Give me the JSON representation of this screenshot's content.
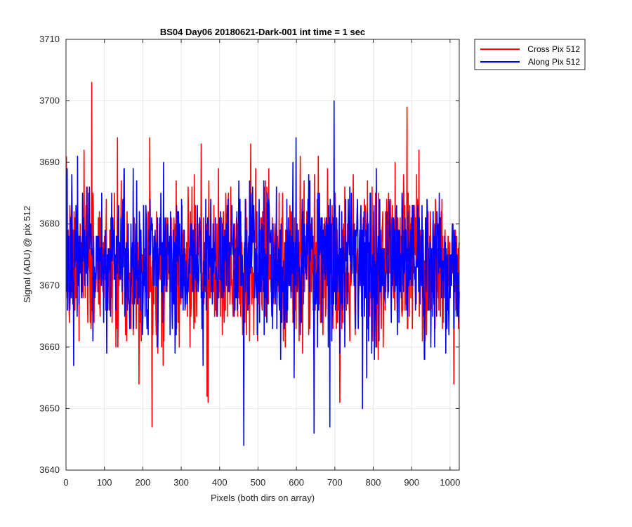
{
  "chart_data": {
    "type": "line",
    "title": "BS04 Day06 20180621-Dark-001 int time = 1 sec",
    "xlabel": "Pixels (both dirs on array)",
    "ylabel": "Signal (ADU) @ pix 512",
    "xlim": [
      0,
      1024
    ],
    "ylim": [
      3640,
      3710
    ],
    "xticks": [
      0,
      100,
      200,
      300,
      400,
      500,
      600,
      700,
      800,
      900,
      1000
    ],
    "yticks": [
      3640,
      3650,
      3660,
      3670,
      3680,
      3690,
      3700,
      3710
    ],
    "grid": true,
    "legend_position": "outside-top-right",
    "series": [
      {
        "name": "Cross Pix 512",
        "color": "#ff0000",
        "noise": {
          "n": 1024,
          "mean": 3673.5,
          "std": 6.2,
          "seed": 7,
          "min": 3647,
          "max": 3703
        },
        "spikes": [
          {
            "x": 66,
            "y": 3703
          },
          {
            "x": 133,
            "y": 3694
          },
          {
            "x": 223,
            "y": 3647
          },
          {
            "x": 366,
            "y": 3652
          },
          {
            "x": 369,
            "y": 3651
          },
          {
            "x": 480,
            "y": 3693
          },
          {
            "x": 887,
            "y": 3699
          }
        ]
      },
      {
        "name": "Along Pix 512",
        "color": "#0000ff",
        "noise": {
          "n": 1024,
          "mean": 3673.5,
          "std": 6.0,
          "seed": 13,
          "min": 3644,
          "max": 3700
        },
        "spikes": [
          {
            "x": 462,
            "y": 3644
          },
          {
            "x": 697,
            "y": 3700
          },
          {
            "x": 645,
            "y": 3646
          },
          {
            "x": 686,
            "y": 3647
          },
          {
            "x": 771,
            "y": 3650
          },
          {
            "x": 29,
            "y": 3691
          },
          {
            "x": 598,
            "y": 3694
          }
        ]
      }
    ]
  }
}
